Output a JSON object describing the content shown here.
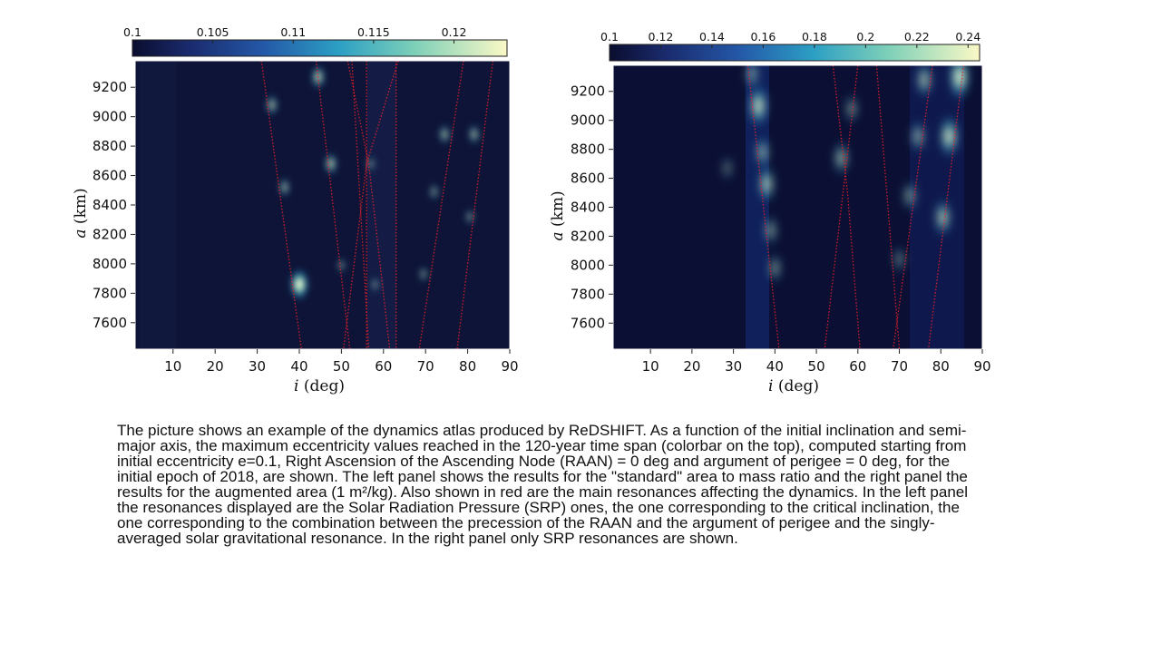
{
  "caption": "The picture shows an example of the dynamics atlas produced by ReDSHIFT. As a function of the initial inclination and semi-major axis, the maximum eccentricity values reached in the 120-year time span (colorbar on the top), computed starting from initial eccentricity e=0.1, Right Ascension of the Ascending Node (RAAN) = 0 deg and argument of perigee = 0 deg, for the initial epoch of 2018, are shown. The left panel shows the results for  the \"standard\" area to mass ratio and the right panel the results for the augmented area (1 m²/kg).  Also shown in red are the main resonances affecting the dynamics. In the left panel the resonances displayed are the Solar Radiation Pressure (SRP) ones, the one corresponding to the critical inclination, the one corresponding to the combination between the precession of the RAAN and the argument of perigee and the singly-averaged solar gravitational resonance. In the right panel only SRP resonances are shown.",
  "chart_data": [
    {
      "type": "heatmap",
      "xlabel_symbol": "i",
      "xlabel_unit": "(deg)",
      "ylabel_symbol": "a",
      "ylabel_unit": "(km)",
      "xlim": [
        1,
        90
      ],
      "ylim": [
        7420,
        9380
      ],
      "x_ticks": [
        "10",
        "20",
        "30",
        "40",
        "50",
        "60",
        "70",
        "80",
        "90"
      ],
      "y_ticks": [
        "7600",
        "7800",
        "8000",
        "8200",
        "8400",
        "8600",
        "8800",
        "9000",
        "9200"
      ],
      "colorbar": {
        "min": 0.1,
        "max": 0.1233,
        "ticks": [
          "0.1",
          "0.105",
          "0.11",
          "0.115",
          "0.12"
        ],
        "position": "top",
        "colormap": "YlGnBu"
      },
      "grid": false,
      "hotspots": [
        {
          "i": 40.0,
          "a": 7860,
          "e": 0.1233
        },
        {
          "i": 44.5,
          "a": 9270,
          "e": 0.113
        },
        {
          "i": 47.5,
          "a": 8680,
          "e": 0.111
        },
        {
          "i": 33.5,
          "a": 9080,
          "e": 0.109
        },
        {
          "i": 36.5,
          "a": 8520,
          "e": 0.107
        },
        {
          "i": 74.5,
          "a": 8880,
          "e": 0.108
        },
        {
          "i": 81.5,
          "a": 8880,
          "e": 0.108
        },
        {
          "i": 72.0,
          "a": 8490,
          "e": 0.104
        },
        {
          "i": 69.5,
          "a": 7930,
          "e": 0.103
        },
        {
          "i": 80.5,
          "a": 8320,
          "e": 0.103
        },
        {
          "i": 57.0,
          "a": 8680,
          "e": 0.102
        },
        {
          "i": 50.0,
          "a": 7990,
          "e": 0.102
        },
        {
          "i": 58.0,
          "a": 7860,
          "e": 0.102
        }
      ],
      "resonances": [
        [
          [
            31.0,
            9380
          ],
          [
            40.5,
            7420
          ]
        ],
        [
          [
            44.0,
            9380
          ],
          [
            52.0,
            7420
          ]
        ],
        [
          [
            51.5,
            9380
          ],
          [
            56.5,
            8680
          ],
          [
            61.5,
            7420
          ]
        ],
        [
          [
            63.5,
            9380
          ],
          [
            56.0,
            8680
          ],
          [
            50.5,
            7420
          ]
        ],
        [
          [
            52.5,
            9380
          ],
          [
            56.5,
            7420
          ]
        ],
        [
          [
            56.0,
            9380
          ],
          [
            56.0,
            7420
          ]
        ],
        [
          [
            63.0,
            9380
          ],
          [
            63.0,
            7420
          ]
        ],
        [
          [
            79.0,
            9380
          ],
          [
            68.5,
            7420
          ]
        ],
        [
          [
            86.0,
            9380
          ],
          [
            77.5,
            7420
          ]
        ]
      ]
    },
    {
      "type": "heatmap",
      "xlabel_symbol": "i",
      "xlabel_unit": "(deg)",
      "ylabel_symbol": "a",
      "ylabel_unit": "(km)",
      "xlim": [
        1,
        90
      ],
      "ylim": [
        7420,
        9380
      ],
      "x_ticks": [
        "10",
        "20",
        "30",
        "40",
        "50",
        "60",
        "70",
        "80",
        "90"
      ],
      "y_ticks": [
        "7600",
        "7800",
        "8000",
        "8200",
        "8400",
        "8600",
        "8800",
        "9000",
        "9200"
      ],
      "colorbar": {
        "min": 0.1,
        "max": 0.2445,
        "ticks": [
          "0.1",
          "0.12",
          "0.14",
          "0.16",
          "0.18",
          "0.2",
          "0.22",
          "0.24"
        ],
        "position": "top",
        "colormap": "YlGnBu"
      },
      "grid": false,
      "hotspots": [
        {
          "i": 34.5,
          "a": 9320,
          "e": 0.15
        },
        {
          "i": 36.0,
          "a": 9100,
          "e": 0.215
        },
        {
          "i": 37.0,
          "a": 8780,
          "e": 0.16
        },
        {
          "i": 38.0,
          "a": 8560,
          "e": 0.19
        },
        {
          "i": 39.0,
          "a": 8240,
          "e": 0.15
        },
        {
          "i": 40.0,
          "a": 7980,
          "e": 0.145
        },
        {
          "i": 56.0,
          "a": 8740,
          "e": 0.17
        },
        {
          "i": 58.5,
          "a": 9080,
          "e": 0.14
        },
        {
          "i": 84.5,
          "a": 9300,
          "e": 0.24
        },
        {
          "i": 82.0,
          "a": 8890,
          "e": 0.22
        },
        {
          "i": 80.5,
          "a": 8330,
          "e": 0.19
        },
        {
          "i": 76.0,
          "a": 9280,
          "e": 0.18
        },
        {
          "i": 74.5,
          "a": 8890,
          "e": 0.16
        },
        {
          "i": 72.5,
          "a": 8480,
          "e": 0.15
        },
        {
          "i": 70.0,
          "a": 8040,
          "e": 0.125
        },
        {
          "i": 28.5,
          "a": 8670,
          "e": 0.115
        }
      ],
      "resonances": [
        [
          [
            33.5,
            9380
          ],
          [
            41.0,
            7420
          ]
        ],
        [
          [
            60.0,
            9380
          ],
          [
            52.0,
            7420
          ]
        ],
        [
          [
            54.0,
            9380
          ],
          [
            57.5,
            8500
          ],
          [
            60.5,
            7420
          ]
        ],
        [
          [
            64.5,
            9380
          ],
          [
            70.0,
            7420
          ]
        ],
        [
          [
            78.0,
            9380
          ],
          [
            68.5,
            7420
          ]
        ],
        [
          [
            85.5,
            9380
          ],
          [
            77.0,
            7420
          ]
        ]
      ]
    }
  ]
}
